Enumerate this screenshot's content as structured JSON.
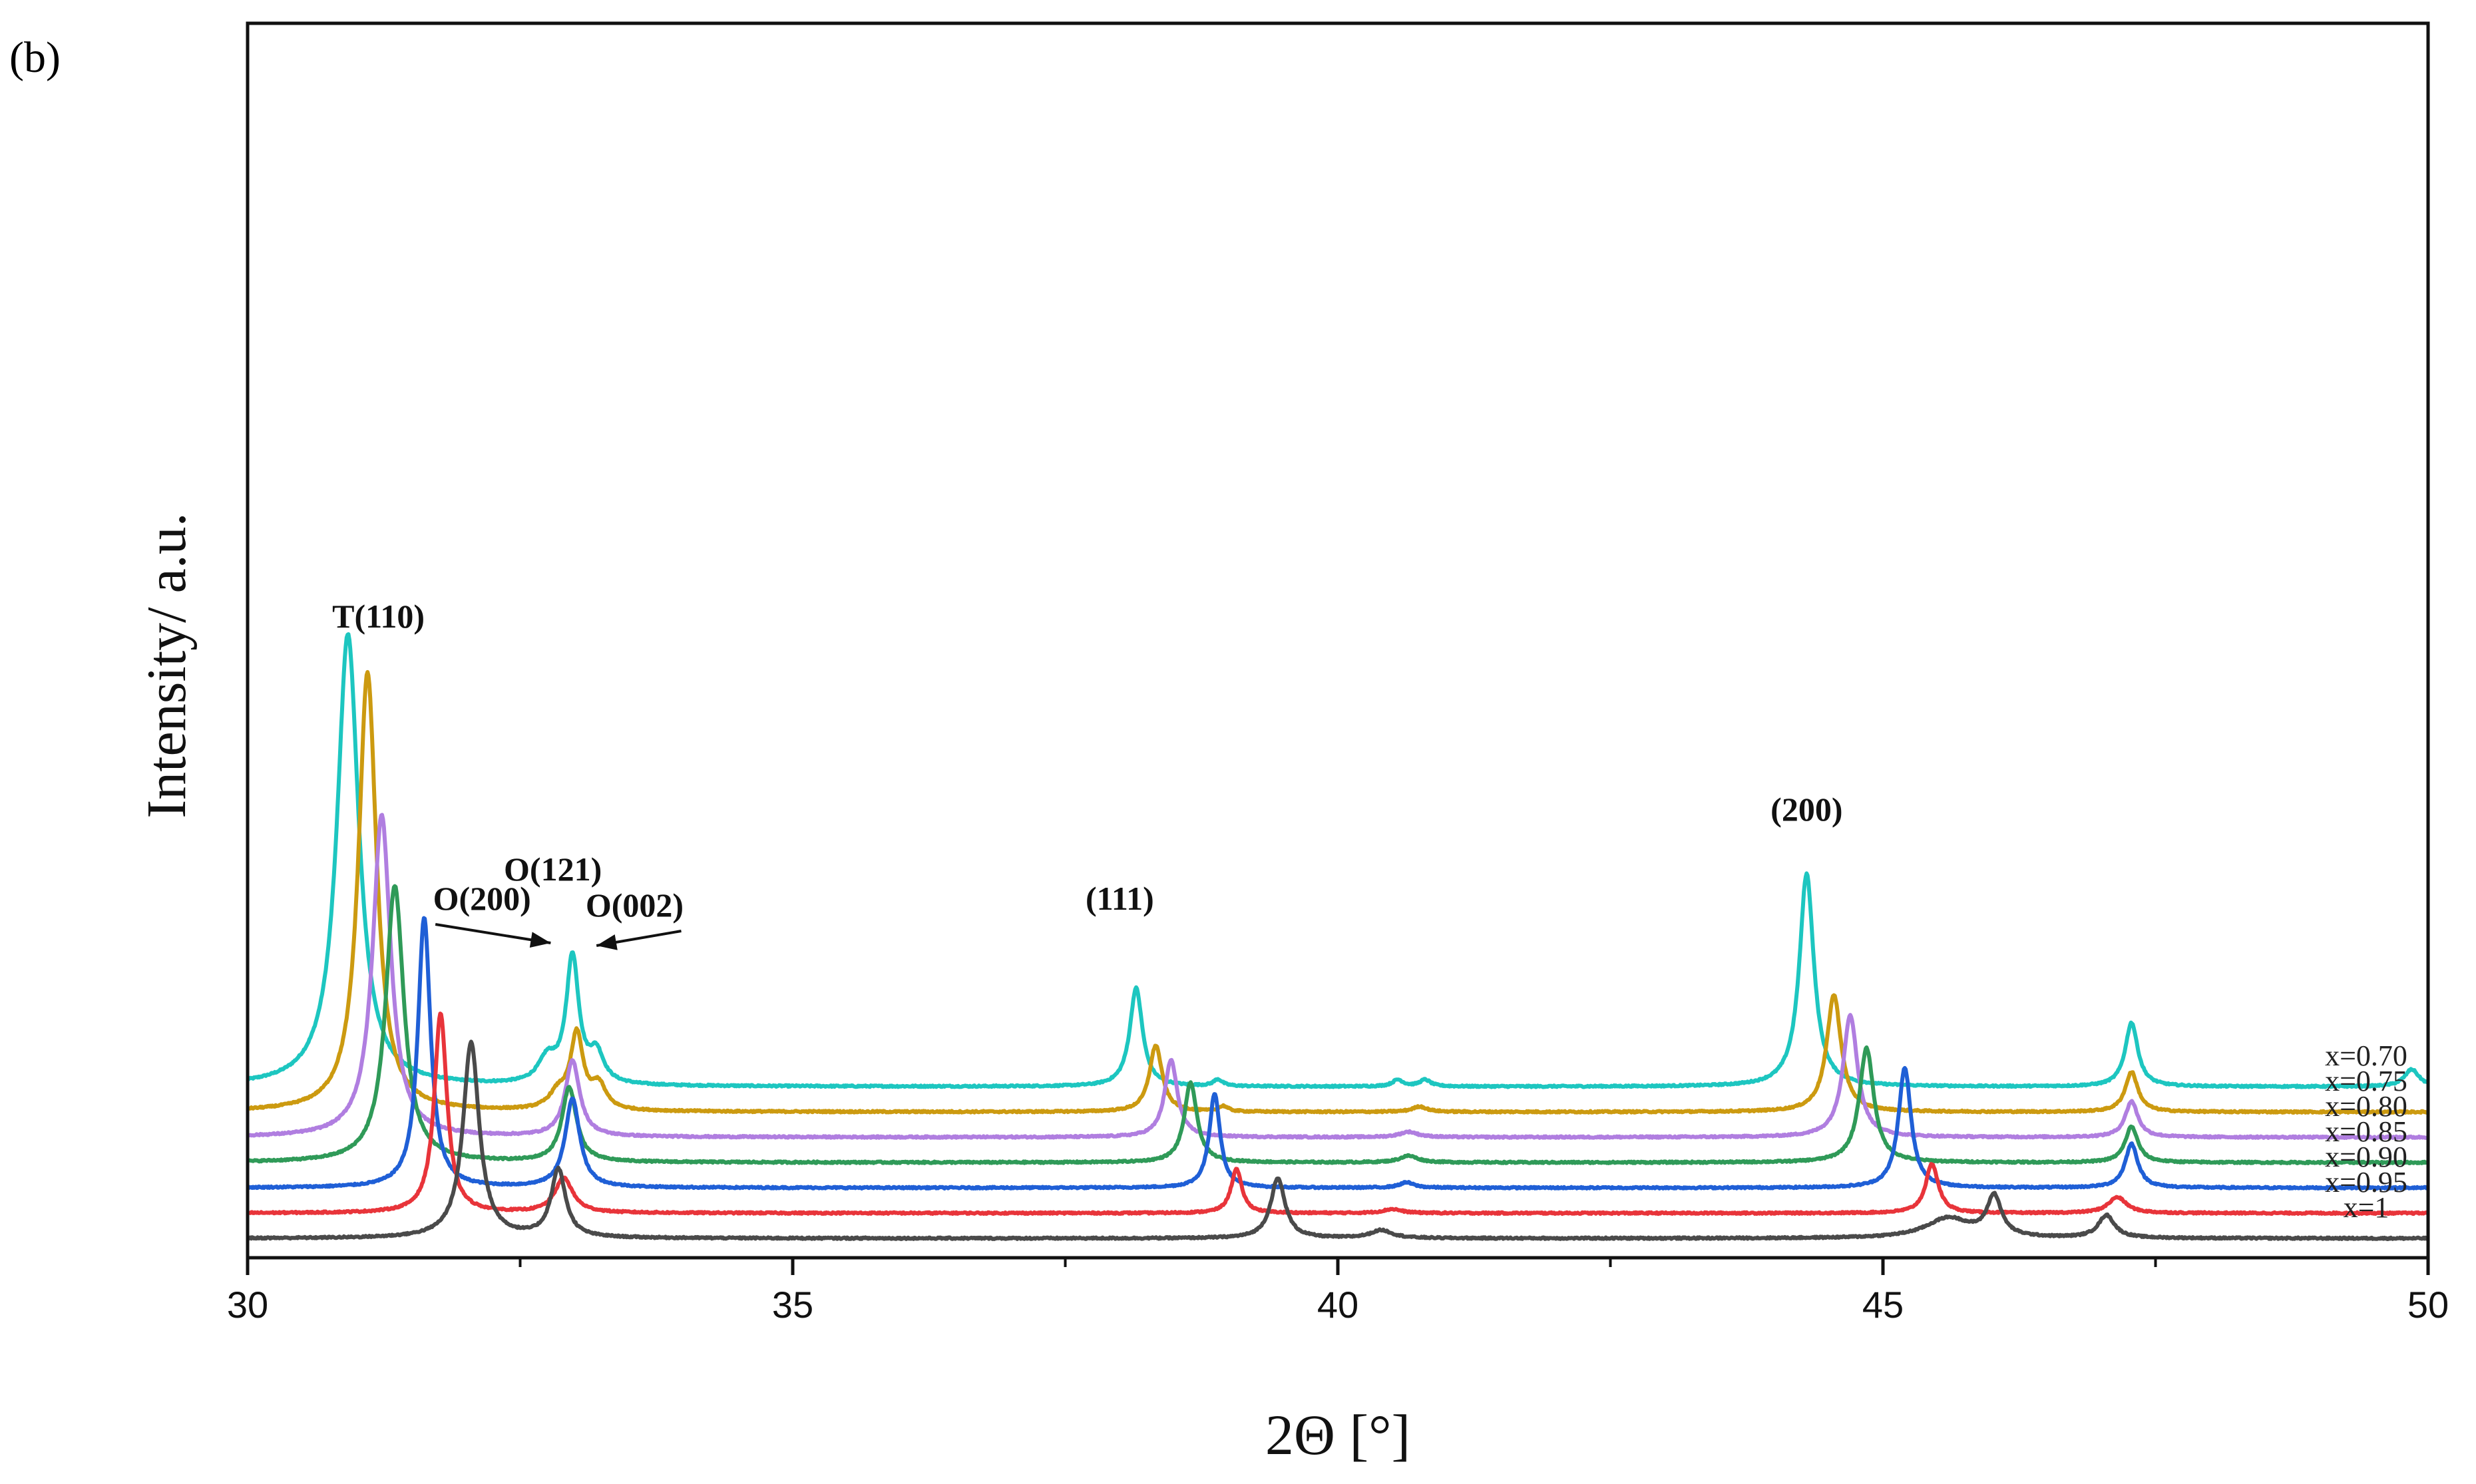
{
  "panel_label": "(b)",
  "chart_data": {
    "type": "line",
    "title": "",
    "xlabel": "2Θ [°]",
    "ylabel": "Intensity/ a.u.",
    "xlim": [
      30,
      50
    ],
    "x_ticks": [
      30,
      35,
      40,
      45,
      50
    ],
    "x_ticks_minor": [
      32.5,
      37.5,
      42.5,
      47.5
    ],
    "grid": false,
    "legend": "none",
    "series_label_position": "right of each trace",
    "series": [
      {
        "name": "x=0.70",
        "color": "#1dc6c0",
        "baseline": 1.0,
        "peaks": [
          {
            "x": 30.92,
            "height": 3.4,
            "width": 0.12
          },
          {
            "x": 32.75,
            "height": 0.18,
            "width": 0.1
          },
          {
            "x": 32.98,
            "height": 0.95,
            "width": 0.07
          },
          {
            "x": 33.2,
            "height": 0.22,
            "width": 0.08
          },
          {
            "x": 38.15,
            "height": 0.74,
            "width": 0.07
          },
          {
            "x": 38.9,
            "height": 0.05,
            "width": 0.05
          },
          {
            "x": 40.55,
            "height": 0.05,
            "width": 0.06
          },
          {
            "x": 40.8,
            "height": 0.05,
            "width": 0.06
          },
          {
            "x": 44.3,
            "height": 1.6,
            "width": 0.08
          },
          {
            "x": 47.28,
            "height": 0.48,
            "width": 0.07
          },
          {
            "x": 49.85,
            "height": 0.13,
            "width": 0.08
          }
        ]
      },
      {
        "name": "x=0.75",
        "color": "#cc9a10",
        "baseline": 0.81,
        "peaks": [
          {
            "x": 31.1,
            "height": 3.3,
            "width": 0.1
          },
          {
            "x": 32.85,
            "height": 0.12,
            "width": 0.1
          },
          {
            "x": 33.02,
            "height": 0.56,
            "width": 0.07
          },
          {
            "x": 33.22,
            "height": 0.18,
            "width": 0.08
          },
          {
            "x": 38.33,
            "height": 0.5,
            "width": 0.07
          },
          {
            "x": 38.95,
            "height": 0.04,
            "width": 0.05
          },
          {
            "x": 40.75,
            "height": 0.04,
            "width": 0.08
          },
          {
            "x": 44.55,
            "height": 0.88,
            "width": 0.08
          },
          {
            "x": 47.28,
            "height": 0.3,
            "width": 0.07
          }
        ]
      },
      {
        "name": "x=0.80",
        "color": "#b07ee0",
        "baseline": 0.62,
        "peaks": [
          {
            "x": 31.23,
            "height": 2.42,
            "width": 0.1
          },
          {
            "x": 32.98,
            "height": 0.57,
            "width": 0.08
          },
          {
            "x": 38.47,
            "height": 0.58,
            "width": 0.07
          },
          {
            "x": 40.65,
            "height": 0.04,
            "width": 0.1
          },
          {
            "x": 44.7,
            "height": 0.92,
            "width": 0.08
          },
          {
            "x": 47.28,
            "height": 0.27,
            "width": 0.07
          }
        ]
      },
      {
        "name": "x=0.85",
        "color": "#2f9a58",
        "baseline": 0.43,
        "peaks": [
          {
            "x": 31.35,
            "height": 2.08,
            "width": 0.1
          },
          {
            "x": 32.95,
            "height": 0.56,
            "width": 0.08
          },
          {
            "x": 38.65,
            "height": 0.6,
            "width": 0.07
          },
          {
            "x": 40.65,
            "height": 0.05,
            "width": 0.1
          },
          {
            "x": 44.85,
            "height": 0.86,
            "width": 0.08
          },
          {
            "x": 47.28,
            "height": 0.27,
            "width": 0.07
          }
        ]
      },
      {
        "name": "x=0.90",
        "color": "#1f5fd6",
        "baseline": 0.24,
        "peaks": [
          {
            "x": 31.62,
            "height": 2.03,
            "width": 0.07
          },
          {
            "x": 32.98,
            "height": 0.67,
            "width": 0.08
          },
          {
            "x": 38.87,
            "height": 0.71,
            "width": 0.06
          },
          {
            "x": 40.63,
            "height": 0.04,
            "width": 0.08
          },
          {
            "x": 45.2,
            "height": 0.9,
            "width": 0.07
          },
          {
            "x": 47.28,
            "height": 0.33,
            "width": 0.07
          }
        ]
      },
      {
        "name": "x=0.95",
        "color": "#e8343a",
        "baseline": 0.05,
        "peaks": [
          {
            "x": 31.77,
            "height": 1.5,
            "width": 0.07
          },
          {
            "x": 32.9,
            "height": 0.26,
            "width": 0.1
          },
          {
            "x": 39.07,
            "height": 0.33,
            "width": 0.06
          },
          {
            "x": 40.5,
            "height": 0.03,
            "width": 0.1
          },
          {
            "x": 45.45,
            "height": 0.37,
            "width": 0.07
          },
          {
            "x": 47.15,
            "height": 0.12,
            "width": 0.1
          }
        ]
      },
      {
        "name": "x=1",
        "color": "#4a4a4a",
        "baseline": -0.14,
        "peaks": [
          {
            "x": 32.05,
            "height": 1.47,
            "width": 0.09
          },
          {
            "x": 32.85,
            "height": 0.51,
            "width": 0.08
          },
          {
            "x": 39.45,
            "height": 0.45,
            "width": 0.08
          },
          {
            "x": 40.4,
            "height": 0.06,
            "width": 0.12
          },
          {
            "x": 45.6,
            "height": 0.15,
            "width": 0.25
          },
          {
            "x": 46.02,
            "height": 0.3,
            "width": 0.08
          },
          {
            "x": 47.05,
            "height": 0.17,
            "width": 0.09
          }
        ]
      }
    ],
    "annotations": [
      {
        "text": "T(110)",
        "x": 31.2,
        "y": 4.45,
        "arrow": false
      },
      {
        "text": "O(121)",
        "x": 32.8,
        "y": 2.55,
        "arrow": false
      },
      {
        "text": "O(200)",
        "x": 32.15,
        "y": 2.33,
        "arrow": true,
        "arrow_to": [
          32.78,
          2.08
        ]
      },
      {
        "text": "O(002)",
        "x": 33.55,
        "y": 2.28,
        "arrow": true,
        "arrow_to": [
          33.2,
          2.06
        ]
      },
      {
        "text": "(111)",
        "x": 38.0,
        "y": 2.33,
        "arrow": false
      },
      {
        "text": "(200)",
        "x": 44.3,
        "y": 3.0,
        "arrow": false
      }
    ]
  }
}
